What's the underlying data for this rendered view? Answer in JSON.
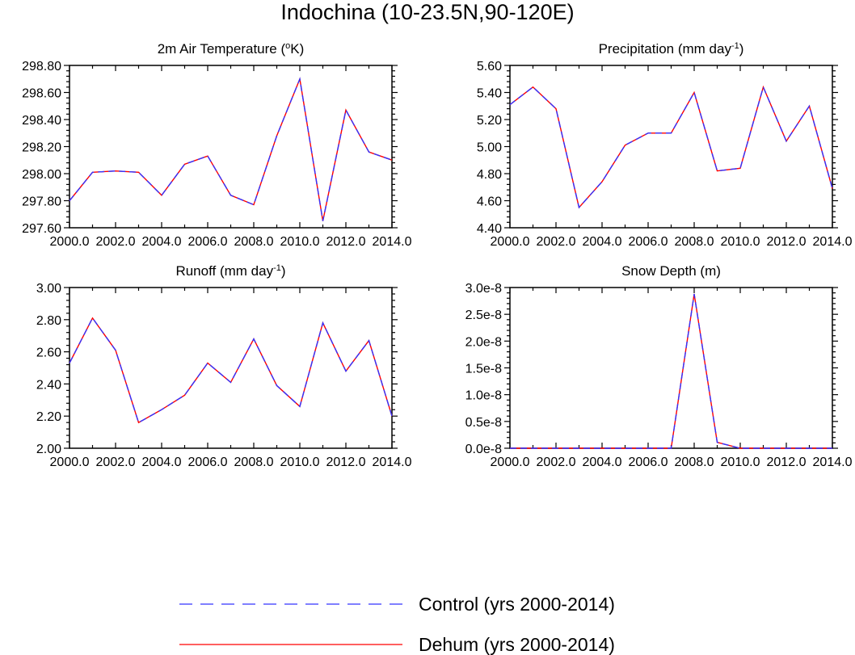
{
  "figure": {
    "title": "Indochina (10-23.5N,90-120E)"
  },
  "chart_data": [
    {
      "type": "line",
      "title": "2m Air Temperature (",
      "title_sup": "o",
      "title_tail": "K)",
      "xlim": [
        2000,
        2014
      ],
      "ylim": [
        297.6,
        298.8
      ],
      "x_ticks": [
        "2000.0",
        "2002.0",
        "2004.0",
        "2006.0",
        "2008.0",
        "2010.0",
        "2012.0",
        "2014.0"
      ],
      "y_ticks": [
        "297.60",
        "297.80",
        "298.00",
        "298.20",
        "298.40",
        "298.60",
        "298.80"
      ],
      "x": [
        2000,
        2001,
        2002,
        2003,
        2004,
        2005,
        2006,
        2007,
        2008,
        2009,
        2010,
        2011,
        2012,
        2013,
        2014
      ],
      "series": [
        {
          "name": "Control (yrs 2000-2014)",
          "values": [
            297.8,
            298.01,
            298.02,
            298.01,
            297.84,
            298.07,
            298.13,
            297.84,
            297.77,
            298.28,
            298.7,
            297.65,
            298.47,
            298.16,
            298.1
          ]
        },
        {
          "name": "Dehum (yrs 2000-2014)",
          "values": [
            297.8,
            298.01,
            298.02,
            298.01,
            297.84,
            298.07,
            298.13,
            297.84,
            297.77,
            298.28,
            298.7,
            297.65,
            298.47,
            298.16,
            298.1
          ]
        }
      ]
    },
    {
      "type": "line",
      "title": "Precipitation (mm day",
      "title_sup": "-1",
      "title_tail": ")",
      "xlim": [
        2000,
        2014
      ],
      "ylim": [
        4.4,
        5.6
      ],
      "x_ticks": [
        "2000.0",
        "2002.0",
        "2004.0",
        "2006.0",
        "2008.0",
        "2010.0",
        "2012.0",
        "2014.0"
      ],
      "y_ticks": [
        "4.40",
        "4.60",
        "4.80",
        "5.00",
        "5.20",
        "5.40",
        "5.60"
      ],
      "x": [
        2000,
        2001,
        2002,
        2003,
        2004,
        2005,
        2006,
        2007,
        2008,
        2009,
        2010,
        2011,
        2012,
        2013,
        2014
      ],
      "series": [
        {
          "name": "Control (yrs 2000-2014)",
          "values": [
            5.31,
            5.44,
            5.28,
            4.55,
            4.74,
            5.01,
            5.1,
            5.1,
            5.4,
            4.82,
            4.84,
            5.44,
            5.04,
            5.3,
            4.69
          ]
        },
        {
          "name": "Dehum (yrs 2000-2014)",
          "values": [
            5.31,
            5.44,
            5.28,
            4.55,
            4.74,
            5.01,
            5.1,
            5.1,
            5.4,
            4.82,
            4.84,
            5.44,
            5.04,
            5.3,
            4.69
          ]
        }
      ]
    },
    {
      "type": "line",
      "title": "Runoff (mm day",
      "title_sup": "-1",
      "title_tail": ")",
      "xlim": [
        2000,
        2014
      ],
      "ylim": [
        2.0,
        3.0
      ],
      "x_ticks": [
        "2000.0",
        "2002.0",
        "2004.0",
        "2006.0",
        "2008.0",
        "2010.0",
        "2012.0",
        "2014.0"
      ],
      "y_ticks": [
        "2.00",
        "2.20",
        "2.40",
        "2.60",
        "2.80",
        "3.00"
      ],
      "x": [
        2000,
        2001,
        2002,
        2003,
        2004,
        2005,
        2006,
        2007,
        2008,
        2009,
        2010,
        2011,
        2012,
        2013,
        2014
      ],
      "series": [
        {
          "name": "Control (yrs 2000-2014)",
          "values": [
            2.53,
            2.81,
            2.61,
            2.16,
            2.24,
            2.33,
            2.53,
            2.41,
            2.68,
            2.39,
            2.26,
            2.78,
            2.48,
            2.67,
            2.2
          ]
        },
        {
          "name": "Dehum (yrs 2000-2014)",
          "values": [
            2.53,
            2.81,
            2.61,
            2.16,
            2.24,
            2.33,
            2.53,
            2.41,
            2.68,
            2.39,
            2.26,
            2.78,
            2.48,
            2.67,
            2.2
          ]
        }
      ]
    },
    {
      "type": "line",
      "title": "Snow Depth (m)",
      "title_sup": "",
      "title_tail": "",
      "xlim": [
        2000,
        2014
      ],
      "ylim": [
        0,
        3e-08
      ],
      "x_ticks": [
        "2000.0",
        "2002.0",
        "2004.0",
        "2006.0",
        "2008.0",
        "2010.0",
        "2012.0",
        "2014.0"
      ],
      "y_ticks": [
        "0.0e-8",
        "0.5e-8",
        "1.0e-8",
        "1.5e-8",
        "2.0e-8",
        "2.5e-8",
        "3.0e-8"
      ],
      "x": [
        2000,
        2001,
        2002,
        2003,
        2004,
        2005,
        2006,
        2007,
        2008,
        2009,
        2010,
        2011,
        2012,
        2013,
        2014
      ],
      "series": [
        {
          "name": "Control (yrs 2000-2014)",
          "values": [
            0,
            0,
            0,
            0,
            0,
            0,
            0,
            0,
            2.88e-08,
            1.1e-09,
            0,
            0,
            0,
            0,
            0
          ]
        },
        {
          "name": "Dehum (yrs 2000-2014)",
          "values": [
            0,
            0,
            0,
            0,
            0,
            0,
            0,
            0,
            2.88e-08,
            1.1e-09,
            0,
            0,
            0,
            0,
            0
          ]
        }
      ]
    }
  ],
  "legend": {
    "items": [
      {
        "label": "Control (yrs 2000-2014)",
        "color": "#3333ff",
        "style": "dashed"
      },
      {
        "label": "Dehum (yrs 2000-2014)",
        "color": "#ff0000",
        "style": "solid"
      }
    ]
  }
}
